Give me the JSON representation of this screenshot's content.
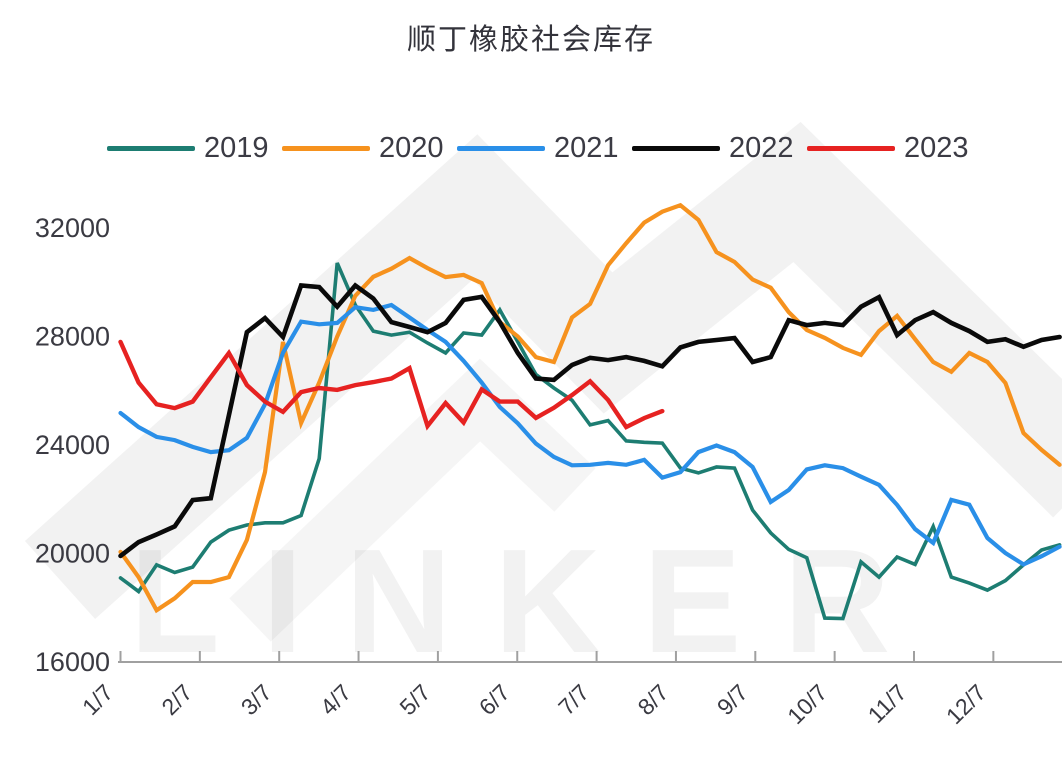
{
  "title": "顺丁橡胶社会库存",
  "watermark": {
    "text": "LINKER"
  },
  "colors": {
    "series_2019": "#1d7d72",
    "series_2020": "#f6921e",
    "series_2021": "#2a8fe8",
    "series_2022": "#0a0a0a",
    "series_2023": "#e62221",
    "axis_line": "#a0a0a0",
    "tick_label": "#3a3a42"
  },
  "chart_data": {
    "type": "line",
    "title": "顺丁橡胶社会库存",
    "xlabel": "",
    "ylabel": "",
    "x_tick_labels": [
      "1/7",
      "2/7",
      "3/7",
      "4/7",
      "5/7",
      "6/7",
      "7/7",
      "8/7",
      "9/7",
      "10/7",
      "11/7",
      "12/7"
    ],
    "y_tick_labels": [
      "32000",
      "28000",
      "24000",
      "20000",
      "16000"
    ],
    "y_ticks": [
      32000,
      28000,
      24000,
      20000,
      16000
    ],
    "ylim": [
      16000,
      33200
    ],
    "grid": false,
    "legend_position": "top",
    "x_unit": "weekly points across one year (Jan–Dec, labels = month/7)",
    "series": [
      {
        "name": "2019",
        "color": "#1d7d72",
        "width": 3.6,
        "values": [
          19100,
          18600,
          19580,
          19300,
          19500,
          20420,
          20860,
          21050,
          21130,
          21130,
          21400,
          23500,
          30710,
          29160,
          28200,
          28050,
          28160,
          27760,
          27390,
          28130,
          28050,
          28980,
          27800,
          26600,
          26100,
          25650,
          24740,
          24900,
          24150,
          24100,
          24070,
          23150,
          22970,
          23190,
          23150,
          21600,
          20760,
          20150,
          19840,
          17620,
          17600,
          19690,
          19130,
          19870,
          19600,
          20990,
          19130,
          18910,
          18650,
          19000,
          19580,
          20130,
          20320
        ]
      },
      {
        "name": "2020",
        "color": "#f6921e",
        "width": 4.2,
        "values": [
          20060,
          19130,
          17910,
          18350,
          18950,
          18950,
          19130,
          20500,
          23000,
          27800,
          24810,
          26300,
          28000,
          29500,
          30200,
          30500,
          30890,
          30520,
          30190,
          30270,
          29970,
          28530,
          28000,
          27240,
          27060,
          28700,
          29200,
          30630,
          31440,
          32200,
          32600,
          32840,
          32300,
          31110,
          30750,
          30100,
          29800,
          28900,
          28240,
          27950,
          27580,
          27320,
          28200,
          28760,
          27900,
          27060,
          26700,
          27390,
          27060,
          26290,
          24440,
          23820,
          23270
        ]
      },
      {
        "name": "2021",
        "color": "#2a8fe8",
        "width": 4.2,
        "values": [
          25180,
          24660,
          24300,
          24180,
          23930,
          23740,
          23810,
          24260,
          25500,
          27400,
          28550,
          28450,
          28500,
          29080,
          28980,
          29160,
          28700,
          28240,
          27800,
          27100,
          26300,
          25400,
          24800,
          24050,
          23560,
          23250,
          23270,
          23340,
          23270,
          23450,
          22800,
          23000,
          23740,
          23980,
          23740,
          23190,
          21900,
          22340,
          23100,
          23250,
          23150,
          22830,
          22530,
          21790,
          20900,
          20390,
          21975,
          21800,
          20570,
          20020,
          19600,
          19900,
          20250
        ]
      },
      {
        "name": "2022",
        "color": "#0a0a0a",
        "width": 4.6,
        "values": [
          19910,
          20420,
          20700,
          21000,
          21970,
          22040,
          25100,
          28160,
          28680,
          27980,
          29880,
          29820,
          29100,
          29880,
          29400,
          28530,
          28350,
          28160,
          28500,
          29350,
          29460,
          28530,
          27390,
          26450,
          26400,
          26950,
          27210,
          27130,
          27240,
          27100,
          26900,
          27600,
          27800,
          27870,
          27940,
          27060,
          27240,
          28600,
          28420,
          28500,
          28420,
          29100,
          29450,
          28050,
          28600,
          28900,
          28500,
          28200,
          27800,
          27900,
          27620,
          27870,
          27980
        ]
      },
      {
        "name": "2023",
        "color": "#e62221",
        "width": 4.4,
        "values": [
          27800,
          26300,
          25500,
          25360,
          25600,
          26500,
          27390,
          26210,
          25600,
          25220,
          25950,
          26100,
          26030,
          26210,
          26320,
          26450,
          26830,
          24700,
          25550,
          24830,
          26050,
          25600,
          25600,
          25000,
          25370,
          25840,
          26350,
          25660,
          24660,
          24990,
          25250
        ]
      }
    ]
  }
}
